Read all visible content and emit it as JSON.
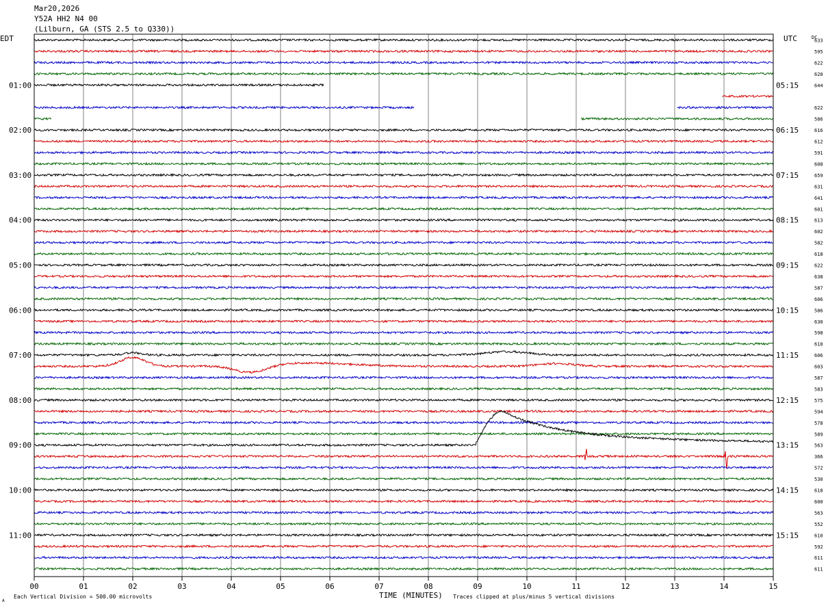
{
  "header": {
    "date": "Mar20,2026",
    "station": "Y52A HH2 N4 00",
    "location": "(Lilburn, GA (STS 2.5 to Q330))"
  },
  "left_axis_title": "EDT",
  "right_axis_title": "UTC",
  "dc_title": "DC",
  "footer": {
    "scale_note": "Each Vertical Division =  500.00 microvolts",
    "x_label": "TIME (MINUTES)",
    "clip_note": "Traces clipped at plus/minus 5 vertical divisions",
    "corner_mark": "A"
  },
  "colors": {
    "trace_cycle": [
      "#000000",
      "#d40000",
      "#0000c8",
      "#006400"
    ],
    "grid": "#808080",
    "frame": "#000000"
  },
  "chart_data": {
    "type": "line",
    "title": "Y52A HH2 N4 00",
    "xlabel": "TIME (MINUTES)",
    "x_ticks": [
      "00",
      "01",
      "02",
      "03",
      "04",
      "05",
      "06",
      "07",
      "08",
      "09",
      "10",
      "11",
      "12",
      "13",
      "14",
      "15"
    ],
    "xlim": [
      0,
      15
    ],
    "minutes_per_line": 15,
    "line_count": 48,
    "left_time_labels": [
      {
        "line": 4,
        "text": "01:00"
      },
      {
        "line": 8,
        "text": "02:00"
      },
      {
        "line": 12,
        "text": "03:00"
      },
      {
        "line": 16,
        "text": "04:00"
      },
      {
        "line": 20,
        "text": "05:00"
      },
      {
        "line": 24,
        "text": "06:00"
      },
      {
        "line": 28,
        "text": "07:00"
      },
      {
        "line": 32,
        "text": "08:00"
      },
      {
        "line": 36,
        "text": "09:00"
      },
      {
        "line": 40,
        "text": "10:00"
      },
      {
        "line": 44,
        "text": "11:00"
      }
    ],
    "right_time_labels": [
      {
        "line": 4,
        "text": "05:15"
      },
      {
        "line": 8,
        "text": "06:15"
      },
      {
        "line": 12,
        "text": "07:15"
      },
      {
        "line": 16,
        "text": "08:15"
      },
      {
        "line": 20,
        "text": "09:15"
      },
      {
        "line": 24,
        "text": "10:15"
      },
      {
        "line": 28,
        "text": "11:15"
      },
      {
        "line": 32,
        "text": "12:15"
      },
      {
        "line": 36,
        "text": "13:15"
      },
      {
        "line": 40,
        "text": "14:15"
      },
      {
        "line": 44,
        "text": "15:15"
      }
    ],
    "dc_offsets": [
      "633",
      "595",
      "622",
      "620",
      "644",
      "",
      "622",
      "586",
      "616",
      "612",
      "591",
      "608",
      "659",
      "631",
      "641",
      "601",
      "613",
      "602",
      "582",
      "618",
      "622",
      "638",
      "587",
      "606",
      "586",
      "630",
      "598",
      "610",
      "606",
      "603",
      "587",
      "583",
      "575",
      "594",
      "578",
      "589",
      "563",
      "366",
      "572",
      "530",
      "618",
      "600",
      "563",
      "552",
      "610",
      "592",
      "611",
      "611"
    ],
    "gaps": [
      {
        "line": 4,
        "segments": [
          [
            0,
            5.88
          ]
        ]
      },
      {
        "line": 5,
        "segments": [
          [
            13.97,
            15
          ]
        ]
      },
      {
        "line": 6,
        "segments": [
          [
            0,
            7.72
          ],
          [
            13.05,
            15
          ]
        ]
      },
      {
        "line": 7,
        "segments": [
          [
            0,
            0.35
          ],
          [
            11.1,
            15
          ]
        ]
      }
    ],
    "events": [
      {
        "line": 28,
        "type": "bump",
        "at": 9.6,
        "width": 0.6,
        "amp": 0.6
      },
      {
        "line": 28,
        "type": "bump",
        "at": 2.0,
        "width": 0.25,
        "amp": 0.4
      },
      {
        "line": 29,
        "type": "bump",
        "at": 2.0,
        "width": 0.35,
        "amp": 1.6
      },
      {
        "line": 29,
        "type": "bump",
        "at": 4.4,
        "width": 0.45,
        "amp": -1.3
      },
      {
        "line": 29,
        "type": "bump",
        "at": 5.6,
        "width": 1.2,
        "amp": 0.6
      },
      {
        "line": 29,
        "type": "bump",
        "at": 10.6,
        "width": 0.5,
        "amp": 0.5
      },
      {
        "line": 36,
        "type": "wave",
        "start": 8.95,
        "peak": 9.5,
        "amp": 3.0
      },
      {
        "line": 37,
        "type": "spike",
        "at": 11.2,
        "amp": 0.8
      },
      {
        "line": 37,
        "type": "spike",
        "at": 14.05,
        "amp": 1.3
      }
    ]
  }
}
